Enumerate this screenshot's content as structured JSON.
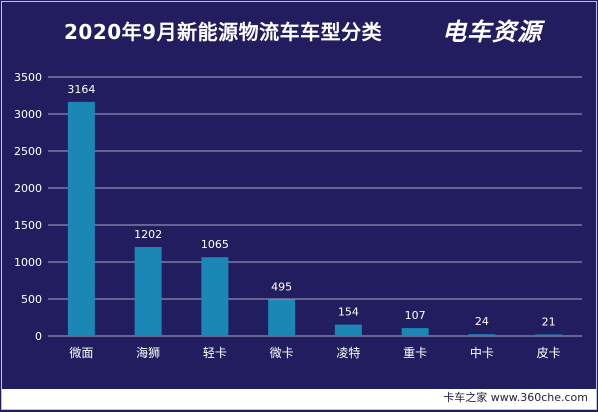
{
  "header": {
    "title": "2020年9月新能源物流车车型分类",
    "logo_text": "电车资源"
  },
  "footer": {
    "source": "卡车之家 www.360che.com"
  },
  "colors": {
    "background": "#221d5e",
    "bar": "#1a87b5",
    "grid": "#d8d8e8"
  },
  "chart_data": {
    "type": "bar",
    "categories": [
      "微面",
      "海狮",
      "轻卡",
      "微卡",
      "凌特",
      "重卡",
      "中卡",
      "皮卡"
    ],
    "values": [
      3164,
      1202,
      1065,
      495,
      154,
      107,
      24,
      21
    ],
    "ylim": [
      0,
      3500
    ],
    "yticks": [
      0,
      500,
      1000,
      1500,
      2000,
      2500,
      3000,
      3500
    ],
    "grid": true,
    "legend": "none"
  }
}
